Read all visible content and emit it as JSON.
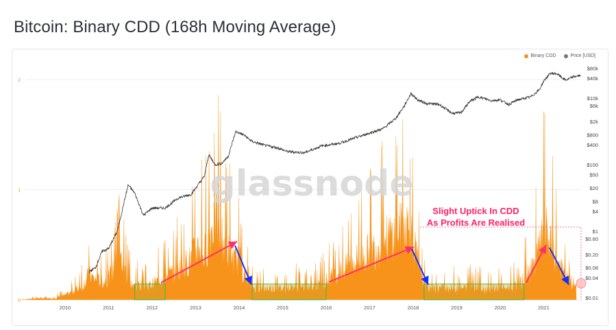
{
  "page": {
    "title": "Bitcoin: Binary CDD (168h Moving Average)"
  },
  "legend": [
    {
      "label": "Binary CDD",
      "color": "#f7931a"
    },
    {
      "label": "Price [USD]",
      "color": "#777777"
    }
  ],
  "watermark": "glassnode",
  "annotation": {
    "line1": "Slight Uptick In CDD",
    "line2": "As Profits Are Realised",
    "color": "#ff1f63"
  },
  "chart_data": {
    "type": "area",
    "x_tick_labels": [
      "2010",
      "2011",
      "2012",
      "2013",
      "2014",
      "2015",
      "2016",
      "2017",
      "2018",
      "2019",
      "2020",
      "2021"
    ],
    "left_axis": {
      "ticks": [
        "0",
        "1",
        "2"
      ],
      "ylim": [
        0,
        2.1
      ]
    },
    "right_axis": {
      "scale": "log",
      "ticks": [
        "$80k",
        "$40k",
        "$10k",
        "$6k",
        "$2k",
        "$800",
        "$400",
        "$100",
        "$50",
        "$20",
        "$8",
        "$4",
        "$1",
        "$0.60",
        "$0.20",
        "$0.08",
        "$0.04",
        "$0.01"
      ]
    },
    "series": [
      {
        "name": "Binary CDD",
        "axis": "left",
        "color": "#f7931a",
        "x": [
          2009.0,
          2009.4,
          2009.7,
          2010.0,
          2010.2,
          2010.4,
          2010.55,
          2010.7,
          2010.9,
          2011.0,
          2011.1,
          2011.25,
          2011.4,
          2011.5,
          2011.6,
          2011.75,
          2011.9,
          2012.1,
          2012.3,
          2012.5,
          2012.7,
          2012.9,
          2013.0,
          2013.1,
          2013.2,
          2013.3,
          2013.45,
          2013.55,
          2013.65,
          2013.8,
          2013.9,
          2014.0,
          2014.1,
          2014.2,
          2014.3,
          2014.5,
          2014.7,
          2014.9,
          2015.1,
          2015.3,
          2015.5,
          2015.7,
          2015.9,
          2016.1,
          2016.3,
          2016.5,
          2016.7,
          2016.9,
          2017.1,
          2017.3,
          2017.5,
          2017.7,
          2017.85,
          2017.95,
          2018.05,
          2018.15,
          2018.3,
          2018.5,
          2018.7,
          2018.9,
          2019.1,
          2019.3,
          2019.5,
          2019.7,
          2019.9,
          2020.1,
          2020.3,
          2020.5,
          2020.7,
          2020.85,
          2021.0,
          2021.05,
          2021.15,
          2021.3,
          2021.45,
          2021.6,
          2021.75
        ],
        "values": [
          0.0,
          0.02,
          0.01,
          0.05,
          0.1,
          0.15,
          0.28,
          0.22,
          0.2,
          0.25,
          0.32,
          0.5,
          0.3,
          0.18,
          0.14,
          0.17,
          0.15,
          0.2,
          0.26,
          0.3,
          0.38,
          0.45,
          0.55,
          0.62,
          0.5,
          0.72,
          0.88,
          0.78,
          0.62,
          0.52,
          0.42,
          0.45,
          0.3,
          0.2,
          0.14,
          0.12,
          0.13,
          0.12,
          0.13,
          0.15,
          0.12,
          0.13,
          0.18,
          0.25,
          0.3,
          0.38,
          0.45,
          0.5,
          0.58,
          0.65,
          0.72,
          0.78,
          0.85,
          0.75,
          0.55,
          0.3,
          0.14,
          0.12,
          0.14,
          0.13,
          0.12,
          0.15,
          0.13,
          0.12,
          0.14,
          0.13,
          0.14,
          0.2,
          0.32,
          0.5,
          0.72,
          0.75,
          0.62,
          0.45,
          0.3,
          0.2,
          0.16
        ]
      },
      {
        "name": "Price [USD]",
        "axis": "right",
        "color": "#333333",
        "x": [
          2010.55,
          2010.7,
          2010.85,
          2011.0,
          2011.2,
          2011.45,
          2011.6,
          2011.8,
          2012.0,
          2012.3,
          2012.6,
          2012.9,
          2013.2,
          2013.3,
          2013.45,
          2013.6,
          2013.75,
          2013.92,
          2014.1,
          2014.3,
          2014.6,
          2014.9,
          2015.1,
          2015.5,
          2015.9,
          2016.3,
          2016.6,
          2017.0,
          2017.3,
          2017.6,
          2017.8,
          2017.95,
          2018.1,
          2018.3,
          2018.6,
          2018.9,
          2019.1,
          2019.3,
          2019.5,
          2019.8,
          2020.0,
          2020.2,
          2020.4,
          2020.7,
          2020.9,
          2021.0,
          2021.15,
          2021.3,
          2021.5,
          2021.7,
          2021.85
        ],
        "values": [
          0.06,
          0.08,
          0.25,
          0.3,
          1.0,
          25,
          14,
          3,
          5,
          5,
          10,
          13,
          45,
          200,
          100,
          110,
          180,
          1000,
          800,
          500,
          380,
          320,
          250,
          230,
          370,
          440,
          600,
          900,
          1200,
          2500,
          6000,
          14000,
          9000,
          7000,
          6500,
          3500,
          3700,
          8000,
          11000,
          8500,
          9000,
          6500,
          9000,
          11000,
          18000,
          33000,
          56000,
          55000,
          35000,
          45000,
          48000
        ]
      }
    ]
  }
}
